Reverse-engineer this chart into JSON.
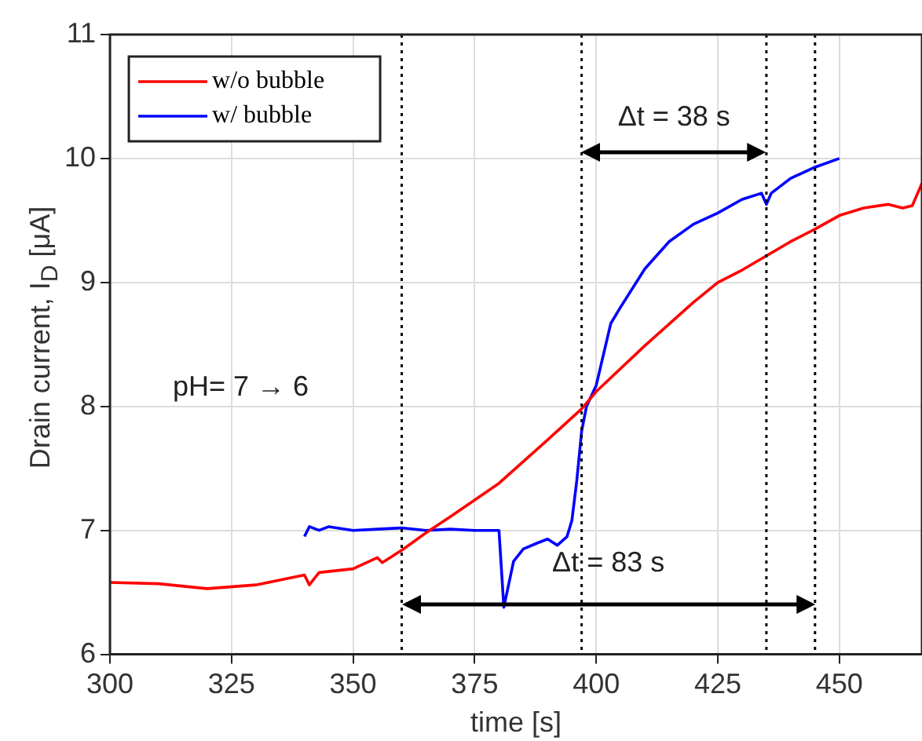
{
  "chart_data": {
    "type": "line",
    "xlabel": "time [s]",
    "ylabel": "Drain current, I$_{D}$ [μA]",
    "xlim": [
      300,
      467
    ],
    "xticks": [
      300,
      325,
      350,
      375,
      400,
      425,
      450
    ],
    "ylim": [
      6,
      11
    ],
    "yticks": [
      6,
      7,
      8,
      9,
      10,
      11
    ],
    "grid": true,
    "legend": "top left",
    "marker": "none",
    "line_style": "solid",
    "series": [
      {
        "name": "w/o bubble",
        "color": "#ff0000",
        "x": [
          300,
          310,
          320,
          330,
          340,
          341,
          343,
          350,
          355,
          356,
          360,
          365,
          370,
          380,
          390,
          397,
          400,
          410,
          420,
          425,
          430,
          440,
          445,
          450,
          455,
          460,
          463,
          465,
          467
        ],
        "values": [
          6.58,
          6.57,
          6.53,
          6.56,
          6.64,
          6.56,
          6.66,
          6.69,
          6.78,
          6.74,
          6.84,
          6.98,
          7.11,
          7.38,
          7.73,
          7.98,
          8.12,
          8.49,
          8.84,
          9.0,
          9.1,
          9.33,
          9.43,
          9.54,
          9.6,
          9.63,
          9.6,
          9.62,
          9.8
        ]
      },
      {
        "name": "w/ bubble",
        "color": "#0000ff",
        "x": [
          340,
          341,
          343,
          345,
          350,
          355,
          360,
          365,
          370,
          375,
          380,
          381,
          383,
          385,
          388,
          390,
          392,
          394,
          395,
          396,
          397,
          398,
          400,
          403,
          405,
          410,
          415,
          420,
          425,
          430,
          434,
          435,
          436,
          440,
          445,
          450
        ],
        "values": [
          6.95,
          7.03,
          7.0,
          7.03,
          7.0,
          7.01,
          7.02,
          7.0,
          7.01,
          7.0,
          7.0,
          6.38,
          6.75,
          6.85,
          6.9,
          6.93,
          6.88,
          6.95,
          7.08,
          7.4,
          7.8,
          8.0,
          8.17,
          8.67,
          8.8,
          9.11,
          9.33,
          9.47,
          9.56,
          9.67,
          9.72,
          9.63,
          9.72,
          9.84,
          9.93,
          10.0
        ]
      }
    ],
    "ref_lines": [
      {
        "axis": "x",
        "value": 360,
        "color": "#000000",
        "line_style": "dotted"
      },
      {
        "axis": "x",
        "value": 397,
        "color": "#000000",
        "line_style": "dotted"
      },
      {
        "axis": "x",
        "value": 435,
        "color": "#000000",
        "line_style": "dotted"
      },
      {
        "axis": "x",
        "value": 445,
        "color": "#000000",
        "line_style": "dotted"
      }
    ],
    "annotations": [
      "pH= 7 → 6",
      "Δt = 38 s",
      "Δt = 83 s"
    ]
  }
}
